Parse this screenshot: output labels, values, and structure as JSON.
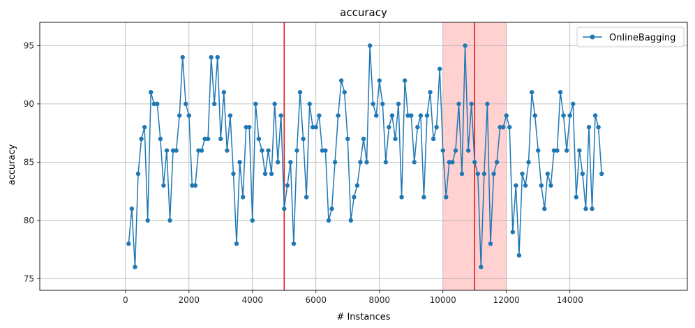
{
  "chart_data": {
    "type": "line",
    "title": "accuracy",
    "xlabel": "# Instances",
    "ylabel": "accuracy",
    "xlim": [
      -2700,
      17700
    ],
    "ylim": [
      74,
      97
    ],
    "xticks": [
      0,
      2000,
      4000,
      6000,
      8000,
      10000,
      12000,
      14000
    ],
    "xtick_labels": [
      "0",
      "2000",
      "4000",
      "6000",
      "8000",
      "10000",
      "12000",
      "14000"
    ],
    "yticks": [
      75,
      80,
      85,
      90,
      95
    ],
    "ytick_labels": [
      "75",
      "80",
      "85",
      "90",
      "95"
    ],
    "grid": true,
    "legend": {
      "placement": "top-right",
      "entries": [
        "OnlineBagging"
      ]
    },
    "colors": {
      "series": "#1f77b4",
      "vline": "#e41a1c",
      "span": "#ff9999"
    },
    "vertical_lines": [
      5000,
      11000
    ],
    "shaded_regions": [
      {
        "x0": 10000,
        "x1": 12000
      }
    ],
    "series": [
      {
        "name": "OnlineBagging",
        "x": [
          100,
          200,
          300,
          400,
          500,
          600,
          700,
          800,
          900,
          1000,
          1100,
          1200,
          1300,
          1400,
          1500,
          1600,
          1700,
          1800,
          1900,
          2000,
          2100,
          2200,
          2300,
          2400,
          2500,
          2600,
          2700,
          2800,
          2900,
          3000,
          3100,
          3200,
          3300,
          3400,
          3500,
          3600,
          3700,
          3800,
          3900,
          4000,
          4100,
          4200,
          4300,
          4400,
          4500,
          4600,
          4700,
          4800,
          4900,
          5000,
          5100,
          5200,
          5300,
          5400,
          5500,
          5600,
          5700,
          5800,
          5900,
          6000,
          6100,
          6200,
          6300,
          6400,
          6500,
          6600,
          6700,
          6800,
          6900,
          7000,
          7100,
          7200,
          7300,
          7400,
          7500,
          7600,
          7700,
          7800,
          7900,
          8000,
          8100,
          8200,
          8300,
          8400,
          8500,
          8600,
          8700,
          8800,
          8900,
          9000,
          9100,
          9200,
          9300,
          9400,
          9500,
          9600,
          9700,
          9800,
          9900,
          10000,
          10100,
          10200,
          10300,
          10400,
          10500,
          10600,
          10700,
          10800,
          10900,
          11000,
          11100,
          11200,
          11300,
          11400,
          11500,
          11600,
          11700,
          11800,
          11900,
          12000,
          12100,
          12200,
          12300,
          12400,
          12500,
          12600,
          12700,
          12800,
          12900,
          13000,
          13100,
          13200,
          13300,
          13400,
          13500,
          13600,
          13700,
          13800,
          13900,
          14000,
          14100,
          14200,
          14300,
          14400,
          14500,
          14600,
          14700,
          14800,
          14900,
          15000
        ],
        "y": [
          78,
          81,
          76,
          84,
          87,
          88,
          80,
          91,
          90,
          90,
          87,
          83,
          86,
          80,
          86,
          86,
          89,
          94,
          90,
          89,
          83,
          83,
          86,
          86,
          87,
          87,
          94,
          90,
          94,
          87,
          91,
          86,
          89,
          84,
          78,
          85,
          82,
          88,
          88,
          80,
          90,
          87,
          86,
          84,
          86,
          84,
          90,
          85,
          89,
          81,
          83,
          85,
          78,
          86,
          91,
          87,
          82,
          90,
          88,
          88,
          89,
          86,
          86,
          80,
          81,
          85,
          89,
          92,
          91,
          87,
          80,
          82,
          83,
          85,
          87,
          85,
          95,
          90,
          89,
          92,
          90,
          85,
          88,
          89,
          87,
          90,
          82,
          92,
          89,
          89,
          85,
          88,
          89,
          82,
          89,
          91,
          87,
          88,
          93,
          86,
          82,
          85,
          85,
          86,
          90,
          84,
          95,
          86,
          90,
          85,
          84,
          76,
          84,
          90,
          78,
          84,
          85,
          88,
          88,
          89,
          88,
          79,
          83,
          77,
          84,
          83,
          85,
          91,
          89,
          86,
          83,
          81,
          84,
          83,
          86,
          86,
          91,
          89,
          86,
          89,
          90,
          82,
          86,
          84,
          81,
          88,
          81,
          89,
          88,
          84
        ]
      }
    ]
  }
}
